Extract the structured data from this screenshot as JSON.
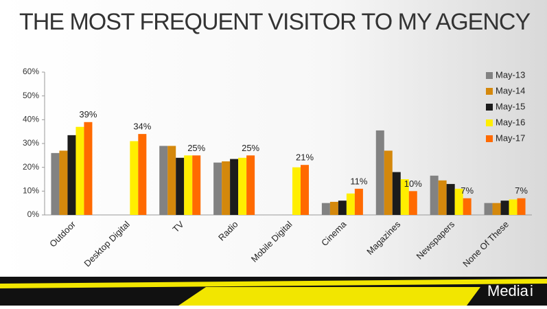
{
  "chart_data": {
    "type": "bar",
    "title": "THE MOST FREQUENT VISITOR TO MY AGENCY",
    "categories": [
      "Outdoor",
      "Desktop Digital",
      "TV",
      "Radio",
      "Mobile Digital",
      "Cinema",
      "Magazines",
      "Newspapers",
      "None Of These"
    ],
    "series": [
      {
        "name": "May-13",
        "color": "#828282",
        "values": [
          26,
          null,
          29,
          22,
          0,
          5,
          35.5,
          16.5,
          5
        ]
      },
      {
        "name": "May-14",
        "color": "#d4880c",
        "values": [
          27,
          null,
          29,
          22.5,
          null,
          5.5,
          27,
          14.5,
          5
        ]
      },
      {
        "name": "May-15",
        "color": "#1c1c1c",
        "values": [
          33.5,
          null,
          24,
          23.5,
          null,
          6,
          18,
          13,
          6
        ]
      },
      {
        "name": "May-16",
        "color": "#ffee00",
        "values": [
          37,
          31,
          25,
          24,
          20,
          9,
          15,
          11,
          6.5
        ]
      },
      {
        "name": "May-17",
        "color": "#ff6a00",
        "values": [
          39,
          34,
          25,
          25,
          21,
          11,
          10,
          7,
          7
        ],
        "value_labels": [
          "39%",
          "34%",
          "25%",
          "25%",
          "21%",
          "11%",
          "10%",
          "7%",
          "7%"
        ]
      }
    ],
    "ylim": [
      0,
      60
    ],
    "yticks": [
      {
        "value": 0,
        "label": "0%"
      },
      {
        "value": 10,
        "label": "10%"
      },
      {
        "value": 20,
        "label": "20%"
      },
      {
        "value": 30,
        "label": "30%"
      },
      {
        "value": 40,
        "label": "40%"
      },
      {
        "value": 50,
        "label": "50%"
      },
      {
        "value": 60,
        "label": "60%"
      }
    ],
    "legend": "top-right"
  },
  "brand": {
    "name": "Media",
    "mark": "i"
  }
}
